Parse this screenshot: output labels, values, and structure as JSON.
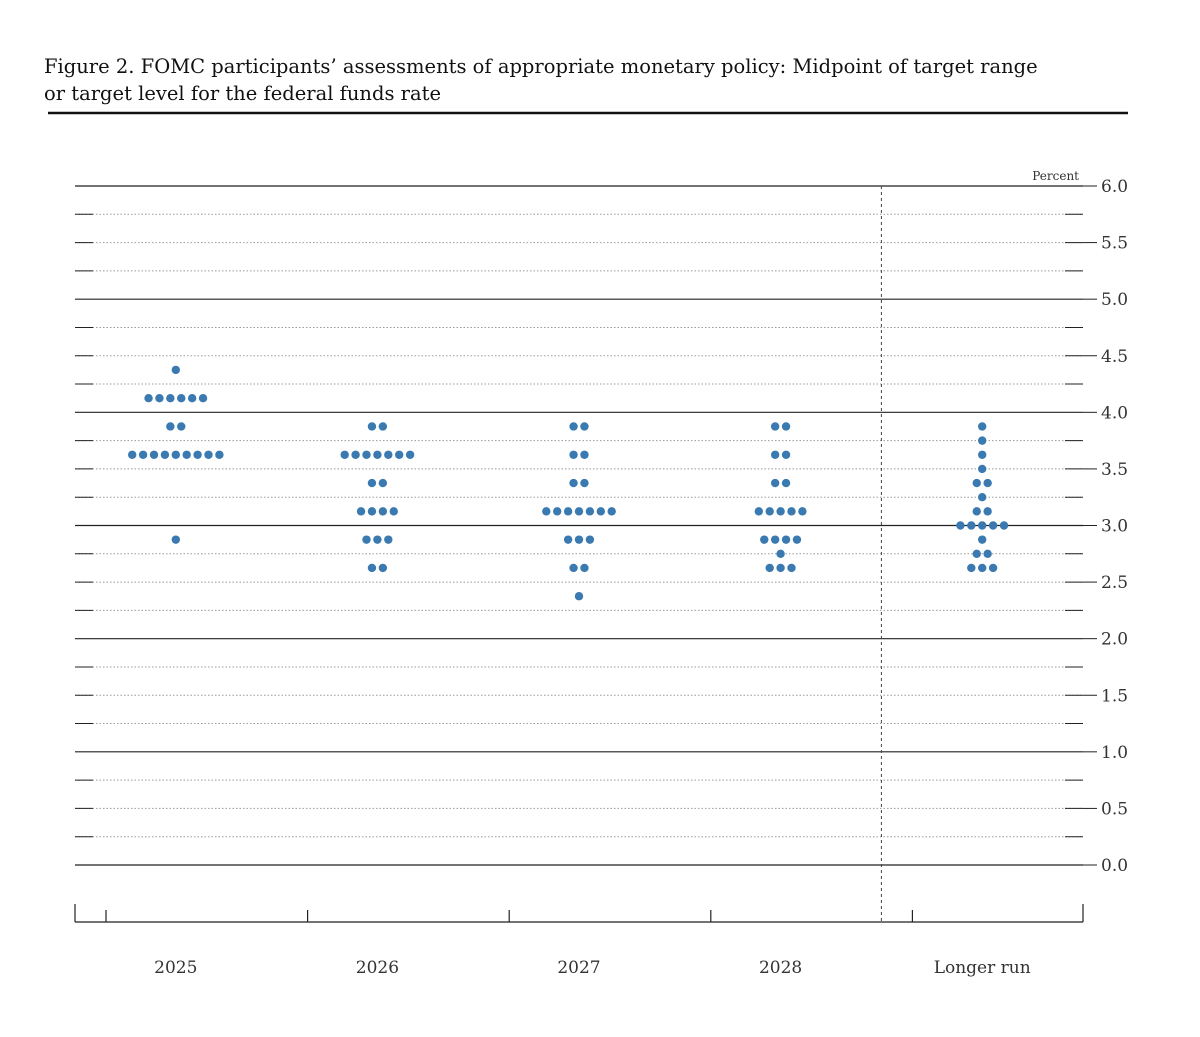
{
  "figure": {
    "title_line1": "Figure 2. FOMC participants’ assessments of appropriate monetary policy: Midpoint of target range",
    "title_line2": "or target level for the federal funds rate"
  },
  "chart_data": {
    "type": "scatter",
    "title": "Figure 2. FOMC participants’ assessments of appropriate monetary policy: Midpoint of target range or target level for the federal funds rate",
    "ylabel": "Percent",
    "xlabel": "",
    "ylim": [
      0,
      6
    ],
    "yticks": [
      "6.0",
      "5.5",
      "5.0",
      "4.5",
      "4.0",
      "3.5",
      "3.0",
      "2.5",
      "2.0",
      "1.5",
      "1.0",
      "0.5",
      "0.0"
    ],
    "categories": [
      "2025",
      "2026",
      "2027",
      "2028",
      "Longer run"
    ],
    "grid": true,
    "dots": [
      {
        "x": "2025",
        "y": 4.375,
        "count": 1
      },
      {
        "x": "2025",
        "y": 4.125,
        "count": 6
      },
      {
        "x": "2025",
        "y": 3.875,
        "count": 2
      },
      {
        "x": "2025",
        "y": 3.625,
        "count": 9
      },
      {
        "x": "2025",
        "y": 2.875,
        "count": 1
      },
      {
        "x": "2026",
        "y": 3.875,
        "count": 2
      },
      {
        "x": "2026",
        "y": 3.625,
        "count": 7
      },
      {
        "x": "2026",
        "y": 3.375,
        "count": 2
      },
      {
        "x": "2026",
        "y": 3.125,
        "count": 4
      },
      {
        "x": "2026",
        "y": 2.875,
        "count": 3
      },
      {
        "x": "2026",
        "y": 2.625,
        "count": 2
      },
      {
        "x": "2027",
        "y": 3.875,
        "count": 2
      },
      {
        "x": "2027",
        "y": 3.625,
        "count": 2
      },
      {
        "x": "2027",
        "y": 3.375,
        "count": 2
      },
      {
        "x": "2027",
        "y": 3.125,
        "count": 7
      },
      {
        "x": "2027",
        "y": 2.875,
        "count": 3
      },
      {
        "x": "2027",
        "y": 2.625,
        "count": 2
      },
      {
        "x": "2027",
        "y": 2.375,
        "count": 1
      },
      {
        "x": "2028",
        "y": 3.875,
        "count": 2
      },
      {
        "x": "2028",
        "y": 3.625,
        "count": 2
      },
      {
        "x": "2028",
        "y": 3.375,
        "count": 2
      },
      {
        "x": "2028",
        "y": 3.125,
        "count": 5
      },
      {
        "x": "2028",
        "y": 2.875,
        "count": 4
      },
      {
        "x": "2028",
        "y": 2.75,
        "count": 1
      },
      {
        "x": "2028",
        "y": 2.625,
        "count": 3
      },
      {
        "x": "Longer run",
        "y": 3.875,
        "count": 1
      },
      {
        "x": "Longer run",
        "y": 3.75,
        "count": 1
      },
      {
        "x": "Longer run",
        "y": 3.625,
        "count": 1
      },
      {
        "x": "Longer run",
        "y": 3.5,
        "count": 1
      },
      {
        "x": "Longer run",
        "y": 3.375,
        "count": 2
      },
      {
        "x": "Longer run",
        "y": 3.25,
        "count": 1
      },
      {
        "x": "Longer run",
        "y": 3.125,
        "count": 2
      },
      {
        "x": "Longer run",
        "y": 3.0,
        "count": 5
      },
      {
        "x": "Longer run",
        "y": 2.875,
        "count": 1
      },
      {
        "x": "Longer run",
        "y": 2.75,
        "count": 2
      },
      {
        "x": "Longer run",
        "y": 2.625,
        "count": 3
      }
    ],
    "colors": {
      "dot": "#3a7ab0",
      "axis": "#222222",
      "grid": "#999999"
    }
  }
}
